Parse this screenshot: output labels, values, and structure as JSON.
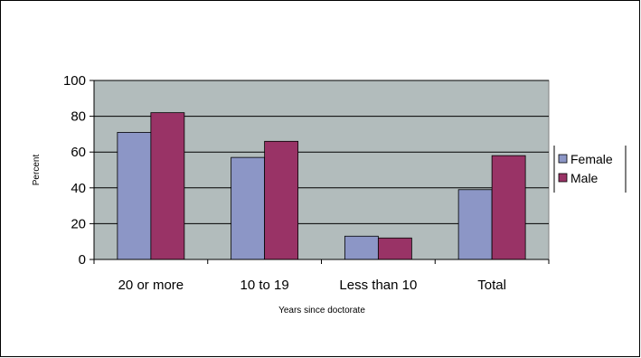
{
  "chart_data": {
    "type": "bar",
    "title": "",
    "xlabel": "Years since doctorate",
    "ylabel": "Percent",
    "categories": [
      "20 or more",
      "10 to 19",
      "Less than 10",
      "Total"
    ],
    "series": [
      {
        "name": "Female",
        "values": [
          71,
          57,
          13,
          39
        ],
        "color": "#8c96c6"
      },
      {
        "name": "Male",
        "values": [
          82,
          66,
          12,
          58
        ],
        "color": "#993366"
      }
    ],
    "ylim": [
      0,
      100
    ],
    "yticks": [
      0,
      20,
      40,
      60,
      80,
      100
    ],
    "grid": true,
    "legend_position": "right",
    "plot_background": "#b2bcbc"
  }
}
